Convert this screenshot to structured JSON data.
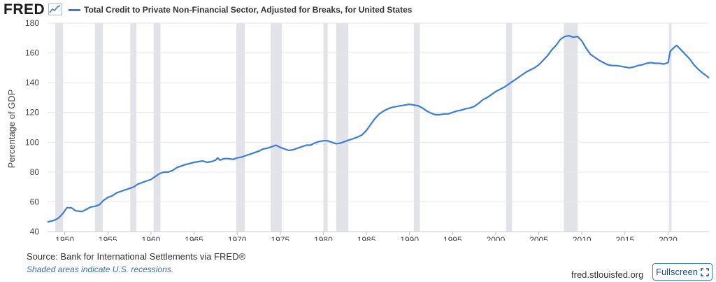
{
  "header": {
    "logo_text": "FRED",
    "logo_icon": "line-chart-icon",
    "series_title": "Total Credit to Private Non-Financial Sector, Adjusted for Breaks, for United States"
  },
  "footer": {
    "source": "Source: Bank for International Settlements via FRED®",
    "recession_note": "Shaded areas indicate U.S. recessions.",
    "site": "fred.stlouisfed.org",
    "fullscreen_label": "Fullscreen",
    "fullscreen_icon": "expand-icon"
  },
  "colors": {
    "line": "#3b7ddd",
    "recession": "#e1e3e8",
    "grid": "#e6e6e6"
  },
  "chart_data": {
    "type": "line",
    "title": "Total Credit to Private Non-Financial Sector, Adjusted for Breaks, for United States",
    "ylabel": "Percentage of GDP",
    "xlabel": "",
    "xlim": [
      1948.0,
      2024.75
    ],
    "ylim": [
      40,
      180
    ],
    "xticks": [
      1950,
      1955,
      1960,
      1965,
      1970,
      1975,
      1980,
      1985,
      1990,
      1995,
      2000,
      2005,
      2010,
      2015,
      2020
    ],
    "yticks": [
      40,
      60,
      80,
      100,
      120,
      140,
      160,
      180
    ],
    "grid": "horizontal",
    "legend": "top-left",
    "recessions": [
      [
        1948.9,
        1949.8
      ],
      [
        1953.5,
        1954.4
      ],
      [
        1957.6,
        1958.3
      ],
      [
        1960.3,
        1961.1
      ],
      [
        1969.9,
        1970.9
      ],
      [
        1973.9,
        1975.2
      ],
      [
        1980.0,
        1980.5
      ],
      [
        1981.5,
        1982.9
      ],
      [
        1990.5,
        1991.2
      ],
      [
        2001.2,
        2001.9
      ],
      [
        2007.9,
        2009.5
      ],
      [
        2020.1,
        2020.4
      ]
    ],
    "series": [
      {
        "name": "Total Credit to Private Non-Financial Sector, Adjusted for Breaks, for United States",
        "points": [
          [
            1948.0,
            46.5
          ],
          [
            1948.75,
            47.5
          ],
          [
            1949.25,
            49
          ],
          [
            1949.75,
            52
          ],
          [
            1950.25,
            56
          ],
          [
            1950.75,
            56
          ],
          [
            1951.25,
            54
          ],
          [
            1952.0,
            53.5
          ],
          [
            1952.5,
            55
          ],
          [
            1953.0,
            56.5
          ],
          [
            1953.5,
            57
          ],
          [
            1954.0,
            58
          ],
          [
            1954.5,
            61
          ],
          [
            1955.0,
            63
          ],
          [
            1955.5,
            64
          ],
          [
            1956.0,
            66
          ],
          [
            1956.5,
            67
          ],
          [
            1957.0,
            68
          ],
          [
            1957.5,
            69
          ],
          [
            1958.0,
            70
          ],
          [
            1958.5,
            72
          ],
          [
            1959.0,
            73
          ],
          [
            1959.5,
            74
          ],
          [
            1960.0,
            75
          ],
          [
            1960.5,
            77
          ],
          [
            1961.0,
            79
          ],
          [
            1961.5,
            80
          ],
          [
            1962.0,
            80
          ],
          [
            1962.5,
            81
          ],
          [
            1963.0,
            83
          ],
          [
            1963.5,
            84
          ],
          [
            1964.0,
            85
          ],
          [
            1965.0,
            86.5
          ],
          [
            1965.5,
            87
          ],
          [
            1966.0,
            87.5
          ],
          [
            1966.5,
            86.5
          ],
          [
            1967.0,
            87
          ],
          [
            1967.5,
            88
          ],
          [
            1967.75,
            89.5
          ],
          [
            1968.0,
            88
          ],
          [
            1968.5,
            89
          ],
          [
            1969.0,
            89
          ],
          [
            1969.5,
            88.5
          ],
          [
            1970.0,
            89.5
          ],
          [
            1970.5,
            90
          ],
          [
            1971.0,
            91
          ],
          [
            1971.5,
            92
          ],
          [
            1972.0,
            93
          ],
          [
            1972.5,
            94
          ],
          [
            1973.0,
            95.5
          ],
          [
            1973.5,
            96
          ],
          [
            1974.0,
            97
          ],
          [
            1974.5,
            98
          ],
          [
            1975.0,
            96.5
          ],
          [
            1975.5,
            95.5
          ],
          [
            1976.0,
            94.5
          ],
          [
            1976.5,
            95
          ],
          [
            1977.0,
            96
          ],
          [
            1977.5,
            97
          ],
          [
            1978.0,
            98
          ],
          [
            1978.5,
            98
          ],
          [
            1979.0,
            99.5
          ],
          [
            1979.5,
            100.5
          ],
          [
            1980.0,
            101
          ],
          [
            1980.5,
            101
          ],
          [
            1981.0,
            100
          ],
          [
            1981.5,
            99
          ],
          [
            1982.0,
            99.5
          ],
          [
            1982.5,
            100.5
          ],
          [
            1983.0,
            101.5
          ],
          [
            1983.5,
            102.5
          ],
          [
            1984.0,
            103.5
          ],
          [
            1984.5,
            105
          ],
          [
            1985.0,
            108
          ],
          [
            1985.5,
            112
          ],
          [
            1986.0,
            116
          ],
          [
            1986.5,
            119
          ],
          [
            1987.0,
            121
          ],
          [
            1987.5,
            122.5
          ],
          [
            1988.0,
            123.5
          ],
          [
            1988.5,
            124
          ],
          [
            1989.0,
            124.5
          ],
          [
            1989.5,
            125
          ],
          [
            1990.0,
            125.5
          ],
          [
            1990.5,
            125
          ],
          [
            1991.0,
            124.5
          ],
          [
            1991.5,
            123
          ],
          [
            1992.0,
            121
          ],
          [
            1992.5,
            119.5
          ],
          [
            1993.0,
            118.5
          ],
          [
            1993.5,
            118.5
          ],
          [
            1994.0,
            119
          ],
          [
            1994.5,
            119
          ],
          [
            1995.0,
            120
          ],
          [
            1995.5,
            121
          ],
          [
            1996.0,
            121.5
          ],
          [
            1996.5,
            122.5
          ],
          [
            1997.0,
            123
          ],
          [
            1997.5,
            124
          ],
          [
            1998.0,
            126
          ],
          [
            1998.5,
            128.5
          ],
          [
            1999.0,
            130
          ],
          [
            1999.5,
            132
          ],
          [
            2000.0,
            134
          ],
          [
            2000.5,
            135.5
          ],
          [
            2001.0,
            137
          ],
          [
            2001.5,
            139
          ],
          [
            2002.0,
            141
          ],
          [
            2002.5,
            143
          ],
          [
            2003.0,
            145
          ],
          [
            2003.5,
            147
          ],
          [
            2004.0,
            148.5
          ],
          [
            2004.5,
            150
          ],
          [
            2005.0,
            152
          ],
          [
            2005.5,
            155
          ],
          [
            2006.0,
            158
          ],
          [
            2006.5,
            162
          ],
          [
            2007.0,
            165
          ],
          [
            2007.5,
            169
          ],
          [
            2008.0,
            171
          ],
          [
            2008.5,
            171.5
          ],
          [
            2009.0,
            170.5
          ],
          [
            2009.5,
            171
          ],
          [
            2010.0,
            168
          ],
          [
            2010.5,
            163
          ],
          [
            2011.0,
            159
          ],
          [
            2011.5,
            157
          ],
          [
            2012.0,
            155
          ],
          [
            2012.5,
            153.5
          ],
          [
            2013.0,
            152
          ],
          [
            2013.5,
            151.5
          ],
          [
            2014.0,
            151.5
          ],
          [
            2014.5,
            151
          ],
          [
            2015.0,
            150.5
          ],
          [
            2015.5,
            150
          ],
          [
            2016.0,
            150.5
          ],
          [
            2016.5,
            151.5
          ],
          [
            2017.0,
            152
          ],
          [
            2017.5,
            153
          ],
          [
            2018.0,
            153.5
          ],
          [
            2018.5,
            153
          ],
          [
            2019.0,
            153
          ],
          [
            2019.5,
            152.5
          ],
          [
            2020.0,
            153.5
          ],
          [
            2020.25,
            161
          ],
          [
            2020.75,
            164
          ],
          [
            2021.0,
            165
          ],
          [
            2021.5,
            162
          ],
          [
            2022.0,
            159
          ],
          [
            2022.5,
            156
          ],
          [
            2023.0,
            152
          ],
          [
            2023.5,
            149
          ],
          [
            2024.0,
            146.5
          ],
          [
            2024.5,
            144.5
          ],
          [
            2024.75,
            143
          ]
        ]
      }
    ]
  }
}
